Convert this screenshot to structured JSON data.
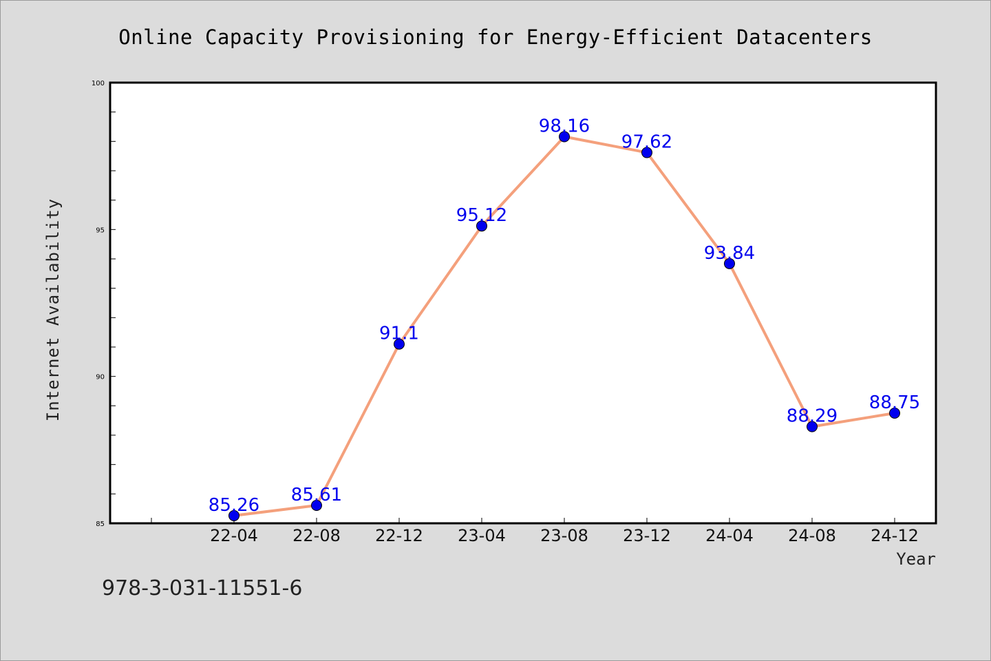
{
  "chart_data": {
    "type": "line",
    "title": "Online Capacity Provisioning for Energy-Efficient Datacenters",
    "xlabel": "Year",
    "ylabel": "Internet Availability",
    "categories": [
      "22-04",
      "22-08",
      "22-12",
      "23-04",
      "23-08",
      "23-12",
      "24-04",
      "24-08",
      "24-12"
    ],
    "series": [
      {
        "values": [
          85.26,
          85.61,
          91.1,
          95.12,
          98.16,
          97.62,
          93.84,
          88.29,
          88.75
        ]
      }
    ],
    "data_labels": [
      "85.26",
      "85.61",
      "91.1",
      "95.12",
      "98.16",
      "97.62",
      "93.84",
      "88.29",
      "88.75"
    ],
    "ylim": [
      85,
      100
    ],
    "yticks": [
      85,
      90,
      95,
      100
    ],
    "grid": false,
    "legend": "none",
    "line_color": "#f4a07c",
    "marker_color": "#0000ee",
    "label_color": "#0000ee"
  },
  "footer_text": "978-3-031-11551-6"
}
